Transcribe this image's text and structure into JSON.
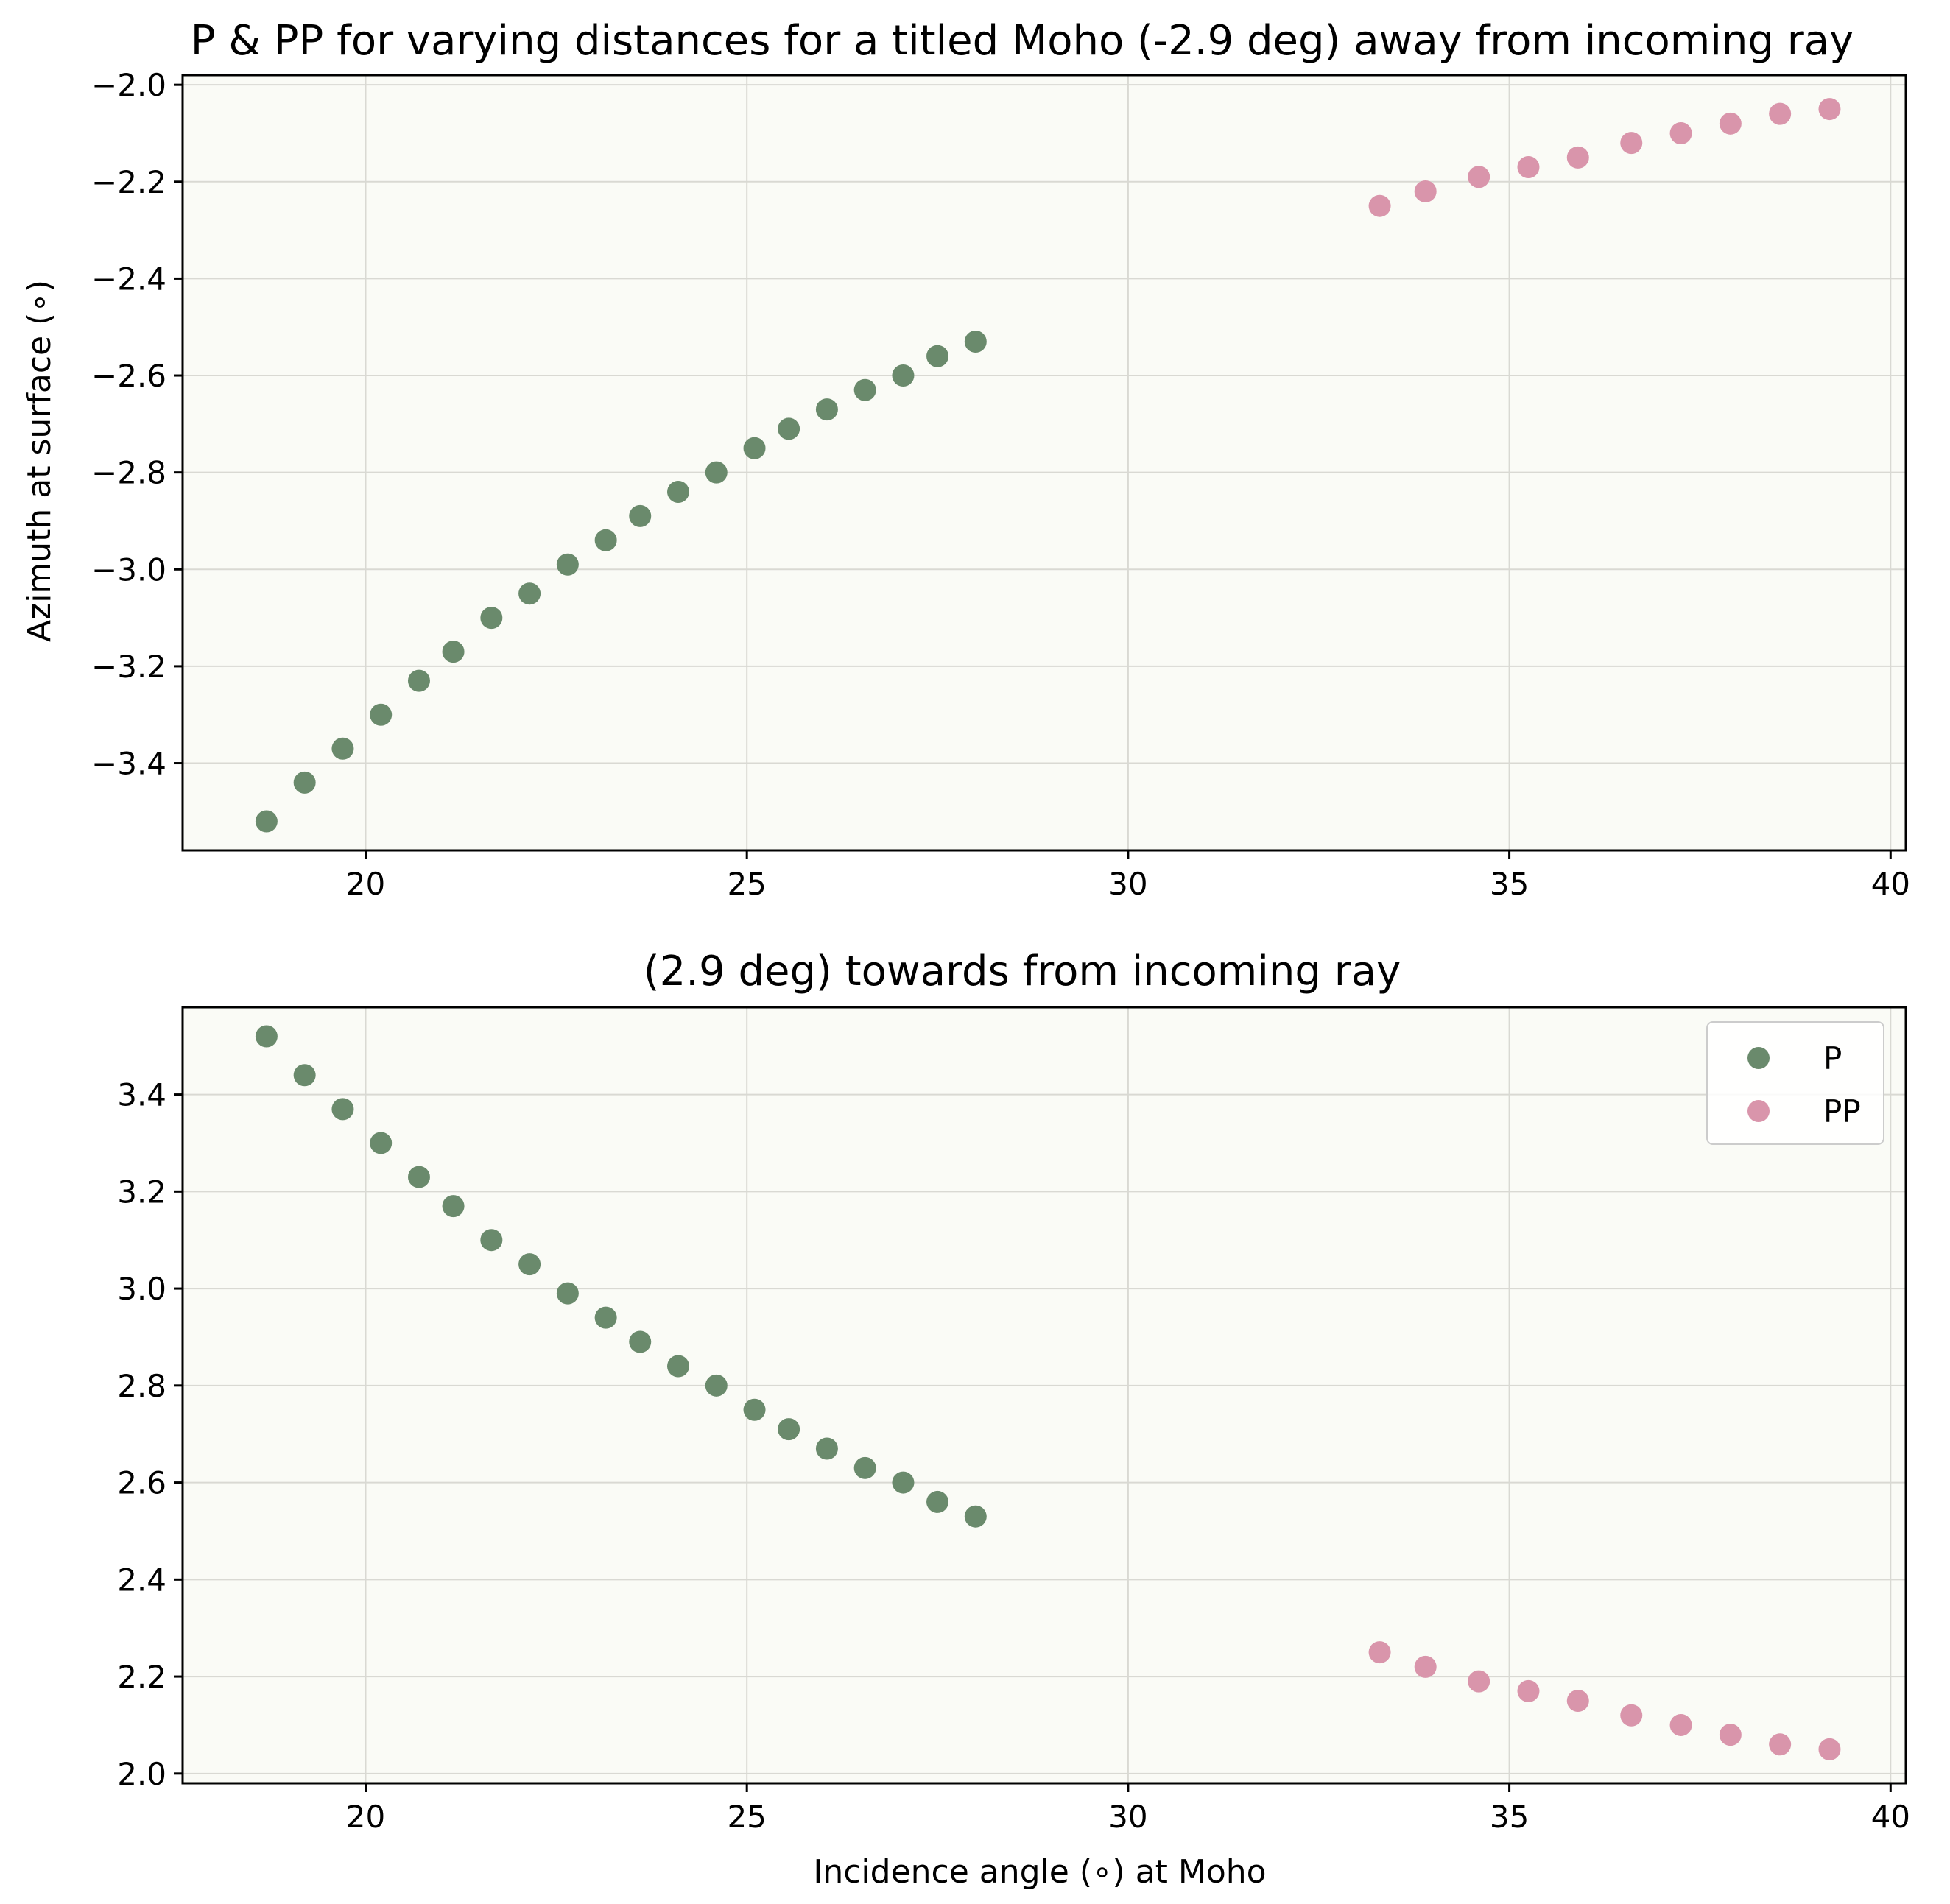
{
  "colors": {
    "P": "#6a8a6c",
    "PP": "#d995ab",
    "axes_bg": "#fafbf6"
  },
  "chart_data": [
    {
      "type": "scatter",
      "title": "P & PP for varying distances for a titled Moho (-2.9 deg) away from incoming ray",
      "xlabel": "",
      "ylabel": "Azimuth at surface (∘)",
      "xlim": [
        17.6,
        40.2
      ],
      "ylim": [
        -3.58,
        -1.98
      ],
      "xticks": [
        20,
        25,
        30,
        35,
        40
      ],
      "yticks": [
        -3.4,
        -3.2,
        -3.0,
        -2.8,
        -2.6,
        -2.4,
        -2.2,
        -2.0
      ],
      "ytick_labels": [
        "−3.4",
        "−3.2",
        "−3.0",
        "−2.8",
        "−2.6",
        "−2.4",
        "−2.2",
        "−2.0"
      ],
      "grid": true,
      "legend": false,
      "series": [
        {
          "name": "P",
          "x": [
            18.7,
            19.2,
            19.7,
            20.2,
            20.7,
            21.15,
            21.65,
            22.15,
            22.65,
            23.15,
            23.6,
            24.1,
            24.6,
            25.1,
            25.55,
            26.05,
            26.55,
            27.05,
            27.5,
            28.0
          ],
          "y": [
            -3.52,
            -3.44,
            -3.37,
            -3.3,
            -3.23,
            -3.17,
            -3.1,
            -3.05,
            -2.99,
            -2.94,
            -2.89,
            -2.84,
            -2.8,
            -2.75,
            -2.71,
            -2.67,
            -2.63,
            -2.6,
            -2.56,
            -2.53
          ]
        },
        {
          "name": "PP",
          "x": [
            33.3,
            33.9,
            34.6,
            35.25,
            35.9,
            36.6,
            37.25,
            37.9,
            38.55,
            39.2
          ],
          "y": [
            -2.25,
            -2.22,
            -2.19,
            -2.17,
            -2.15,
            -2.12,
            -2.1,
            -2.08,
            -2.06,
            -2.05
          ]
        }
      ]
    },
    {
      "type": "scatter",
      "title": "(2.9 deg) towards from incoming ray",
      "xlabel": "Incidence angle (∘) at Moho",
      "ylabel": "",
      "xlim": [
        17.6,
        40.2
      ],
      "ylim": [
        1.98,
        3.58
      ],
      "xticks": [
        20,
        25,
        30,
        35,
        40
      ],
      "yticks": [
        2.0,
        2.2,
        2.4,
        2.6,
        2.8,
        3.0,
        3.2,
        3.4
      ],
      "ytick_labels": [
        "2.0",
        "2.2",
        "2.4",
        "2.6",
        "2.8",
        "3.0",
        "3.2",
        "3.4"
      ],
      "grid": true,
      "legend": "upper right",
      "series": [
        {
          "name": "P",
          "x": [
            18.7,
            19.2,
            19.7,
            20.2,
            20.7,
            21.15,
            21.65,
            22.15,
            22.65,
            23.15,
            23.6,
            24.1,
            24.6,
            25.1,
            25.55,
            26.05,
            26.55,
            27.05,
            27.5,
            28.0
          ],
          "y": [
            3.52,
            3.44,
            3.37,
            3.3,
            3.23,
            3.17,
            3.1,
            3.05,
            2.99,
            2.94,
            2.89,
            2.84,
            2.8,
            2.75,
            2.71,
            2.67,
            2.63,
            2.6,
            2.56,
            2.53
          ]
        },
        {
          "name": "PP",
          "x": [
            33.3,
            33.9,
            34.6,
            35.25,
            35.9,
            36.6,
            37.25,
            37.9,
            38.55,
            39.2
          ],
          "y": [
            2.25,
            2.22,
            2.19,
            2.17,
            2.15,
            2.12,
            2.1,
            2.08,
            2.06,
            2.05
          ]
        }
      ]
    }
  ]
}
